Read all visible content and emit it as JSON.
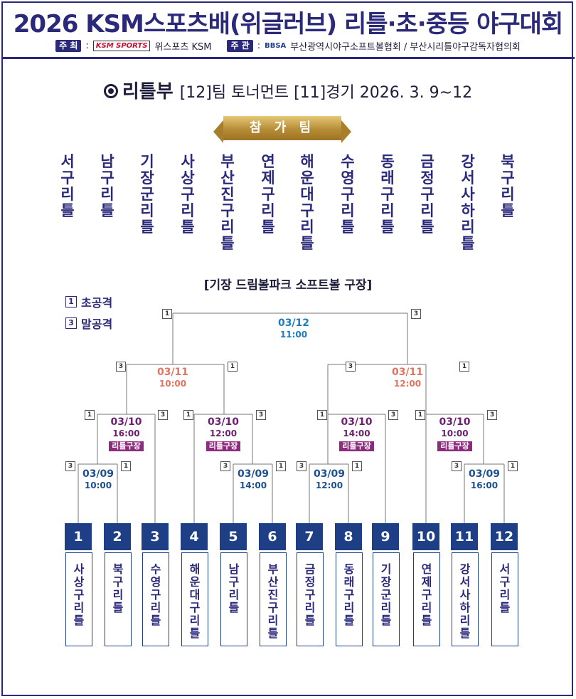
{
  "title": "2026 KSM스포츠배(위글러브) 리틀·초·중등 야구대회",
  "subtitle": {
    "host_tag": "주 최",
    "host_logo": "KSM SPORTS",
    "host_name": "위스포츠 KSM",
    "organizer_tag": "주 관",
    "organizer_logo": "BBSA",
    "organizer_name": "부산광역시야구소프트볼협회 / 부산시리틀야구감독자협의회"
  },
  "division": {
    "name": "리틀부",
    "info": "[12]팀  토너먼트 [11]경기    2026. 3. 9~12"
  },
  "participants_label": "참 가 팀",
  "participants": [
    "서구리틀",
    "남구리틀",
    "기장군리틀",
    "사상구리틀",
    "부산진구리틀",
    "연제구리틀",
    "해운대구리틀",
    "수영구리틀",
    "동래구리틀",
    "금정구리틀",
    "강서사하리틀",
    "북구리틀"
  ],
  "venue": "[기장 드림볼파크  소프트볼 구장]",
  "legend": [
    {
      "box": "1",
      "label": "초공격"
    },
    {
      "box": "3",
      "label": "말공격"
    }
  ],
  "matches": {
    "final": {
      "date": "03/12",
      "time": "11:00"
    },
    "semi1": {
      "date": "03/11",
      "time": "10:00"
    },
    "semi2": {
      "date": "03/11",
      "time": "12:00"
    },
    "qf1": {
      "date": "03/10",
      "time": "16:00",
      "field": "리틀구장"
    },
    "qf2": {
      "date": "03/10",
      "time": "12:00",
      "field": "리틀구장"
    },
    "qf3": {
      "date": "03/10",
      "time": "14:00",
      "field": "리틀구장"
    },
    "qf4": {
      "date": "03/10",
      "time": "10:00",
      "field": "리틀구장"
    },
    "r1a": {
      "date": "03/09",
      "time": "10:00"
    },
    "r1b": {
      "date": "03/09",
      "time": "14:00"
    },
    "r1c": {
      "date": "03/09",
      "time": "12:00"
    },
    "r1d": {
      "date": "03/09",
      "time": "16:00"
    }
  },
  "slot_numbers": [
    "1",
    "2",
    "3",
    "4",
    "5",
    "6",
    "7",
    "8",
    "9",
    "10",
    "11",
    "12"
  ],
  "bracket_teams": [
    "사상구리틀",
    "북구리틀",
    "수영구리틀",
    "해운대구리틀",
    "남구리틀",
    "부산진구리틀",
    "금정구리틀",
    "동래구리틀",
    "기장군리틀",
    "연제구리틀",
    "강서사하리틀",
    "서구리틀"
  ],
  "side_marks": {
    "final_l": "1",
    "final_r": "3",
    "s1_l": "3",
    "s1_r": "1",
    "s2_l": "3",
    "s2_r": "1",
    "q1_l": "1",
    "q1_r": "3",
    "q2_l": "1",
    "q2_r": "3",
    "q3_l": "1",
    "q3_r": "3",
    "q4_l": "1",
    "q4_r": "3",
    "r1a_l": "3",
    "r1a_r": "1",
    "r1b_l": "3",
    "r1b_r": "1",
    "r1c_l": "3",
    "r1c_r": "1",
    "r1d_l": "3",
    "r1d_r": "1"
  },
  "colors": {
    "navy": "#2b2a7a",
    "slot": "#1e3f86",
    "gold": "#b68c36",
    "final": "#1a7cc0",
    "semi": "#e2745f",
    "qf": "#6a1f6f",
    "field": "#8d2b7e"
  }
}
